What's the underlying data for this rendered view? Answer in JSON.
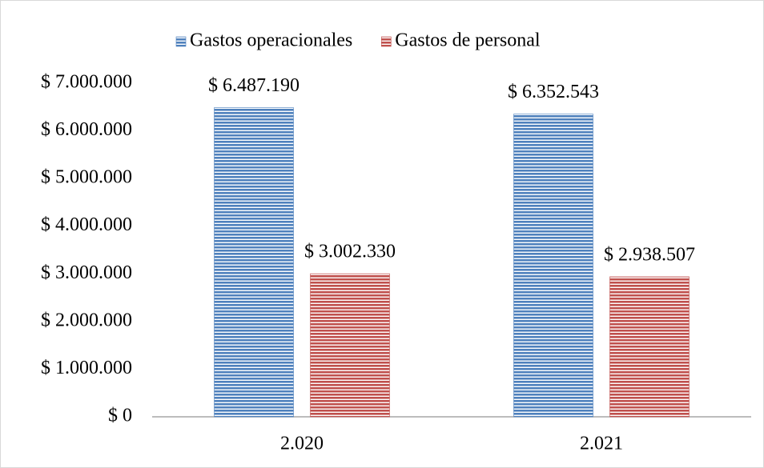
{
  "chart_data": {
    "type": "bar",
    "categories": [
      "2.020",
      "2.021"
    ],
    "series": [
      {
        "name": "Gastos operacionales",
        "color": "#4f81bd",
        "values": [
          6487190,
          6352543
        ],
        "value_labels": [
          "$ 6.487.190",
          "$ 6.352.543"
        ]
      },
      {
        "name": "Gastos de personal",
        "color": "#c0504d",
        "values": [
          3002330,
          2938507
        ],
        "value_labels": [
          "$ 3.002.330",
          "$ 2.938.507"
        ]
      }
    ],
    "ylim": [
      0,
      7000000
    ],
    "yticks": [
      {
        "value": 0,
        "label": "$ 0"
      },
      {
        "value": 1000000,
        "label": "$ 1.000.000"
      },
      {
        "value": 2000000,
        "label": "$ 2.000.000"
      },
      {
        "value": 3000000,
        "label": "$ 3.000.000"
      },
      {
        "value": 4000000,
        "label": "$ 4.000.000"
      },
      {
        "value": 5000000,
        "label": "$ 5.000.000"
      },
      {
        "value": 6000000,
        "label": "$ 6.000.000"
      },
      {
        "value": 7000000,
        "label": "$ 7.000.000"
      }
    ],
    "legend": "top",
    "grid": false
  }
}
